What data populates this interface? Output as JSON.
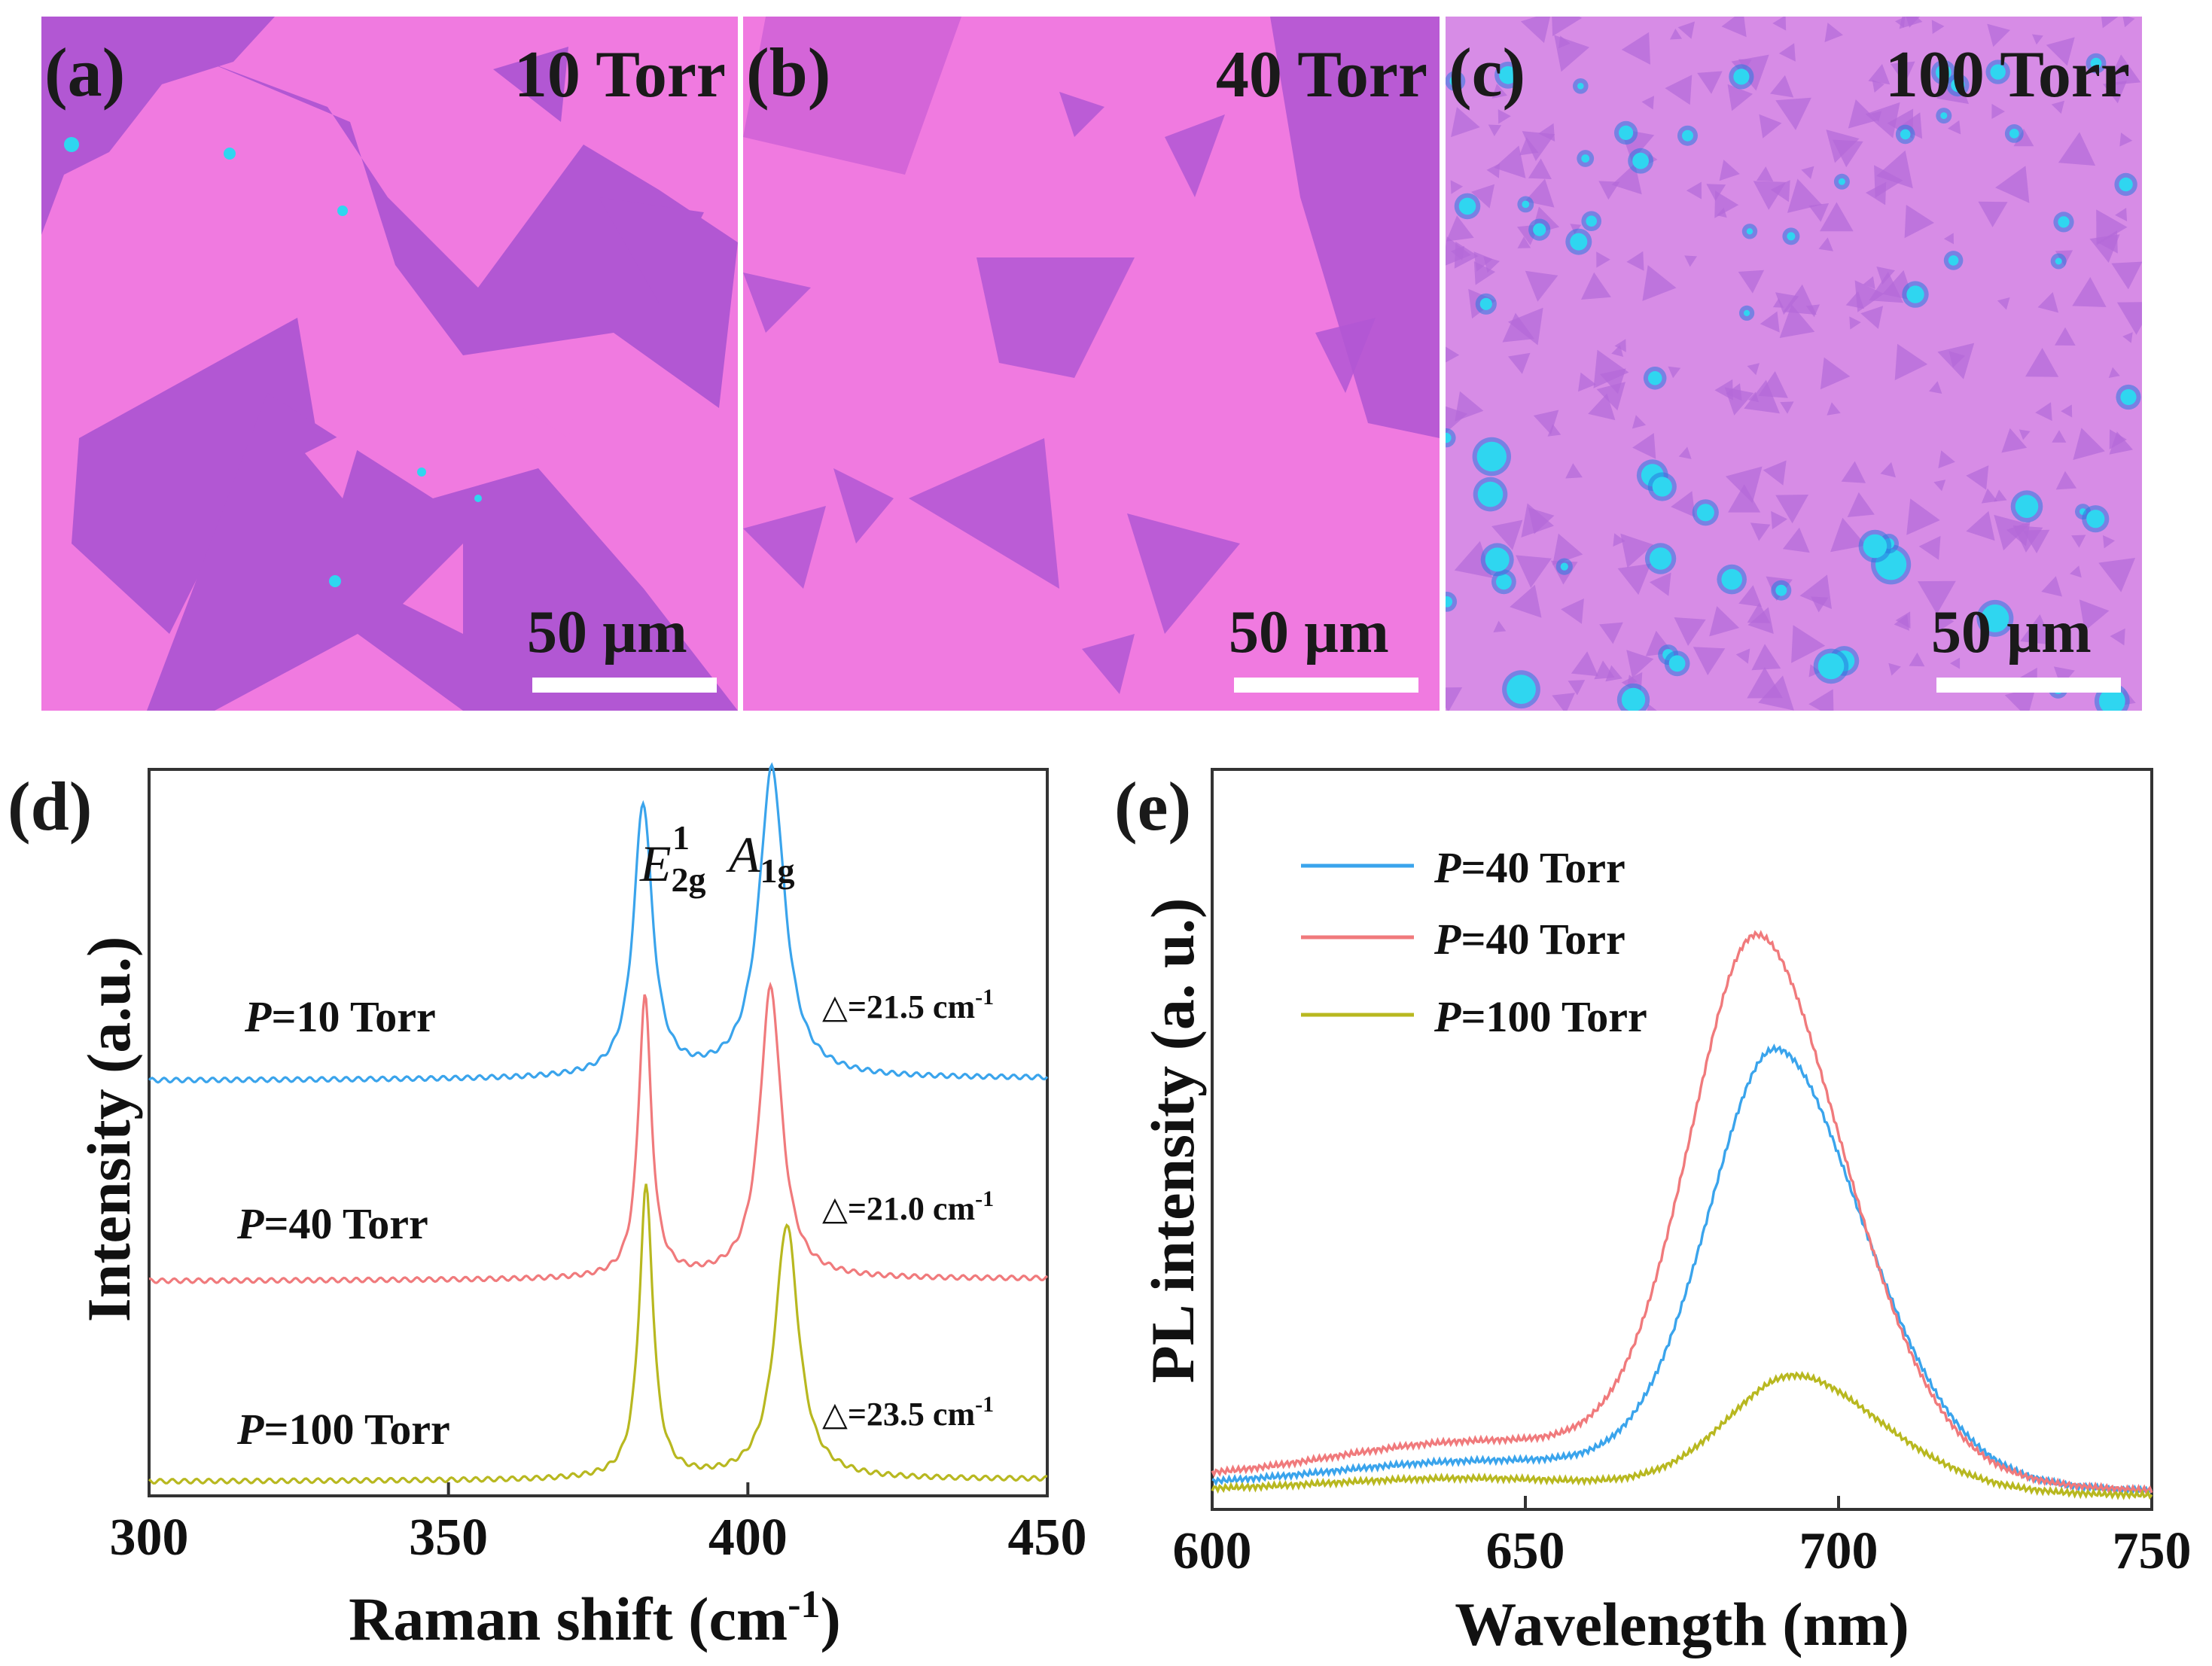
{
  "micrographs": [
    {
      "panel": "(a)",
      "condition": "10 Torr",
      "scale": "50 µm"
    },
    {
      "panel": "(b)",
      "condition": "40 Torr",
      "scale": "50 µm"
    },
    {
      "panel": "(c)",
      "condition": "100 Torr",
      "scale": "50 µm"
    }
  ],
  "colors": {
    "blue": "#3aa4ec",
    "red": "#f07a7c",
    "olive": "#b8b820",
    "substrate": "#f07ae0",
    "flake": "#b257d3",
    "defect": "#2fd6f0"
  },
  "chart_data": [
    {
      "panel": "(d)",
      "type": "line",
      "xlabel": "Raman shift (cm",
      "xlabel_sup": "-1",
      "xlabel_end": ")",
      "ylabel": "Intensity (a.u.)",
      "xlim": [
        300,
        450
      ],
      "xticks": [
        "300",
        "350",
        "400",
        "450"
      ],
      "peak_labels": [
        {
          "main": "E",
          "sub": "2g",
          "sup": "1",
          "x": 382.5
        },
        {
          "main": "A",
          "sub": "1g",
          "sup": "",
          "x": 404
        }
      ],
      "series": [
        {
          "name_pre": "P",
          "name_post": "=10 Torr",
          "color": "blue",
          "shift": "△=21.5 cm",
          "shift_sup": "-1",
          "baseline": 0.0,
          "offset": 2.2,
          "e2g": [
            382.5,
            1.5
          ],
          "a1g": [
            404,
            1.7
          ],
          "widths": [
            1.9,
            2.6
          ]
        },
        {
          "name_pre": "P",
          "name_post": "=40 Torr",
          "color": "red",
          "shift": "△=21.0 cm",
          "shift_sup": "-1",
          "baseline": 0.0,
          "offset": 1.1,
          "e2g": [
            382.8,
            1.55
          ],
          "a1g": [
            403.8,
            1.6
          ],
          "widths": [
            1.3,
            2.2
          ]
        },
        {
          "name_pre": "P",
          "name_post": "=100 Torr",
          "color": "olive",
          "shift": "△=23.5 cm",
          "shift_sup": "-1",
          "baseline": 0.0,
          "offset": 0.0,
          "e2g": [
            383,
            1.6
          ],
          "a1g": [
            406.5,
            1.4
          ],
          "widths": [
            1.4,
            2.4
          ]
        }
      ]
    },
    {
      "panel": "(e)",
      "type": "line",
      "xlabel": "Wavelength (nm)",
      "ylabel": "PL intensity (a. u.)",
      "xlim": [
        600,
        750
      ],
      "xticks": [
        "600",
        "650",
        "700",
        "750"
      ],
      "series": [
        {
          "name_pre": "P",
          "name_post": "=40 Torr",
          "color": "blue",
          "peak": 690,
          "amp": 1.0,
          "shoulder": 0.05
        },
        {
          "name_pre": "P",
          "name_post": "=40 Torr",
          "color": "red",
          "peak": 687,
          "amp": 1.25,
          "shoulder": 0.08
        },
        {
          "name_pre": "P",
          "name_post": "=100 Torr",
          "color": "olive",
          "peak": 693,
          "amp": 0.27,
          "shoulder": 0.03
        }
      ]
    }
  ]
}
